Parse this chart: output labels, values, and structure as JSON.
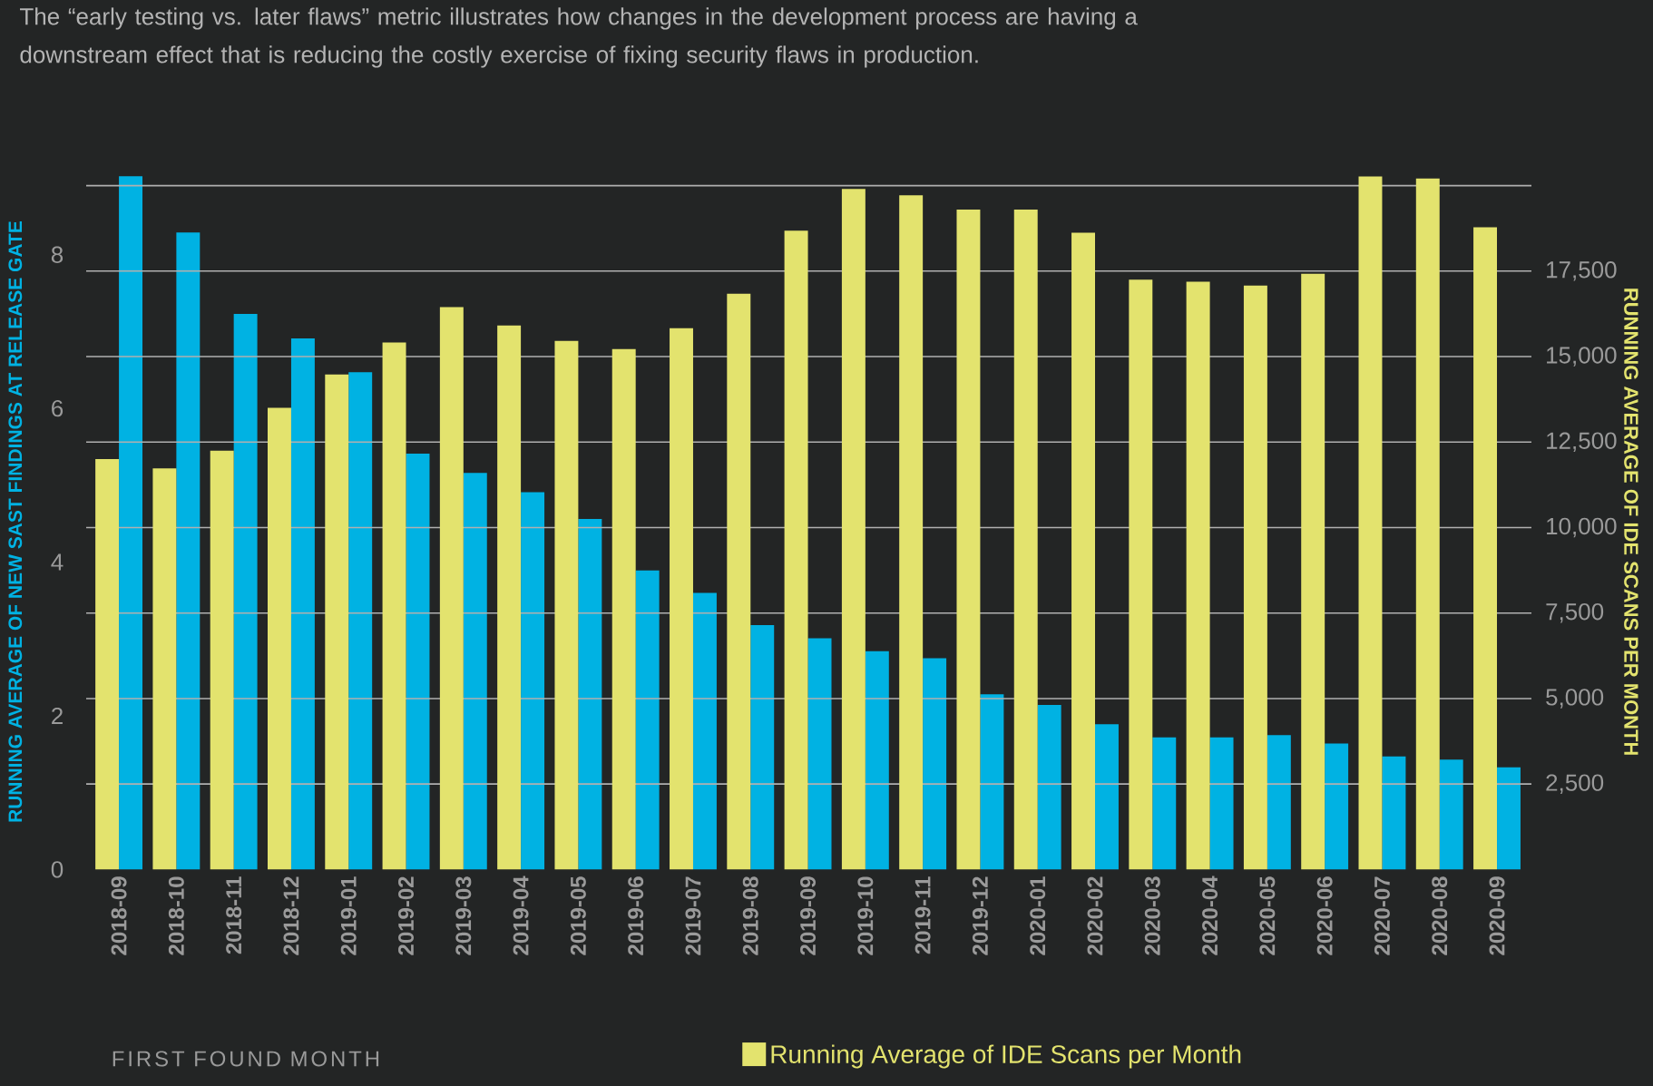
{
  "chart_data": {
    "type": "bar",
    "subtitle": "The “early testing vs. later flaws” metric illustrates how changes in the development process are having a downstream effect that is reducing the costly exercise of fixing security flaws in production.",
    "xlabel": "FIRST FOUND MONTH",
    "ylabel": "RUNNING AVERAGE OF NEW SAST FINDINGS AT RELEASE GATE",
    "y2label": "RUNNING AVERAGE OF IDE SCANS PER MONTH",
    "categories": [
      "2018-09",
      "2018-10",
      "2018-11",
      "2018-12",
      "2019-01",
      "2019-02",
      "2019-03",
      "2019-04",
      "2019-05",
      "2019-06",
      "2019-07",
      "2019-08",
      "2019-09",
      "2019-10",
      "2019-11",
      "2019-12",
      "2020-01",
      "2020-02",
      "2020-03",
      "2020-04",
      "2020-05",
      "2020-06",
      "2020-07",
      "2020-08",
      "2020-09"
    ],
    "series": [
      {
        "name": "Running Average of IDE Scans per Month",
        "color": "#e3e36e",
        "axis": "y2",
        "values": [
          12000,
          11730,
          12250,
          13500,
          14480,
          15410,
          16450,
          15910,
          15460,
          15220,
          15830,
          16840,
          18680,
          19900,
          19720,
          19300,
          19300,
          18620,
          17250,
          17190,
          17080,
          17420,
          20270,
          20210,
          18780
        ]
      },
      {
        "color": "#00b2e3",
        "axis": "y",
        "values": [
          9.02,
          8.29,
          7.23,
          6.91,
          6.47,
          5.41,
          5.16,
          4.91,
          4.56,
          3.89,
          3.6,
          3.18,
          3.01,
          2.84,
          2.75,
          2.28,
          2.14,
          1.89,
          1.72,
          1.72,
          1.75,
          1.64,
          1.47,
          1.43,
          1.33
        ]
      }
    ],
    "ylim": [
      0,
      9.05
    ],
    "yticks": [
      0,
      2,
      4,
      6,
      8
    ],
    "y2lim": [
      0,
      20340
    ],
    "y2ticks": [
      {
        "value": 2500,
        "label": "2,500"
      },
      {
        "value": 5000,
        "label": "5,000"
      },
      {
        "value": 7500,
        "label": "7,500"
      },
      {
        "value": 10000,
        "label": "10,000"
      },
      {
        "value": 12500,
        "label": "12,500"
      },
      {
        "value": 15000,
        "label": "15,000"
      },
      {
        "value": 17500,
        "label": "17,500"
      },
      {
        "value": 20000,
        "label": null
      }
    ],
    "grid": true,
    "legend": "bottom"
  }
}
